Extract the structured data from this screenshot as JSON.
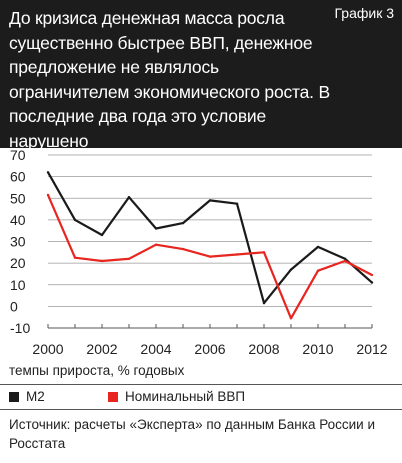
{
  "header": {
    "title": "До кризиса денежная масса росла существенно быстрее ВВП, денежное предложение не являлось ограничителем экономического роста. В последние два года это условие нарушено",
    "label": "График 3"
  },
  "chart_data": {
    "type": "line",
    "title": "До кризиса денежная масса росла существенно быстрее ВВП, денежное предложение не являлось ограничителем экономического роста. В последние два года это условие нарушено",
    "xlabel": "",
    "ylabel": "темпы прироста, % годовых",
    "x": [
      2000,
      2001,
      2002,
      2003,
      2004,
      2005,
      2006,
      2007,
      2008,
      2009,
      2010,
      2011,
      2012
    ],
    "xticks": [
      2000,
      2002,
      2004,
      2006,
      2008,
      2010,
      2012
    ],
    "yticks": [
      -10,
      0,
      10,
      20,
      30,
      40,
      50,
      60,
      70
    ],
    "xlim": [
      2000,
      2012
    ],
    "ylim": [
      -10,
      70
    ],
    "grid": "horizontal",
    "legend": "bottom",
    "series": [
      {
        "name": "М2",
        "color": "#1a1a1a",
        "values": [
          62,
          40,
          33,
          50.5,
          36,
          38.5,
          49,
          47.5,
          1.5,
          17,
          27.5,
          22,
          11
        ]
      },
      {
        "name": "Номинальный ВВП",
        "color": "#e8251f",
        "values": [
          51.5,
          22.5,
          21,
          22,
          28.5,
          26.5,
          23,
          24,
          25,
          -5.5,
          16.5,
          21,
          14.5
        ]
      }
    ]
  },
  "axis_caption": "темпы прироста, % годовых",
  "legend": {
    "items": [
      {
        "label": "М2",
        "color": "#1a1a1a"
      },
      {
        "label": "Номинальный ВВП",
        "color": "#e8251f"
      }
    ]
  },
  "source": "Источник: расчеты «Эксперта» по данным Банка России и Росстата"
}
